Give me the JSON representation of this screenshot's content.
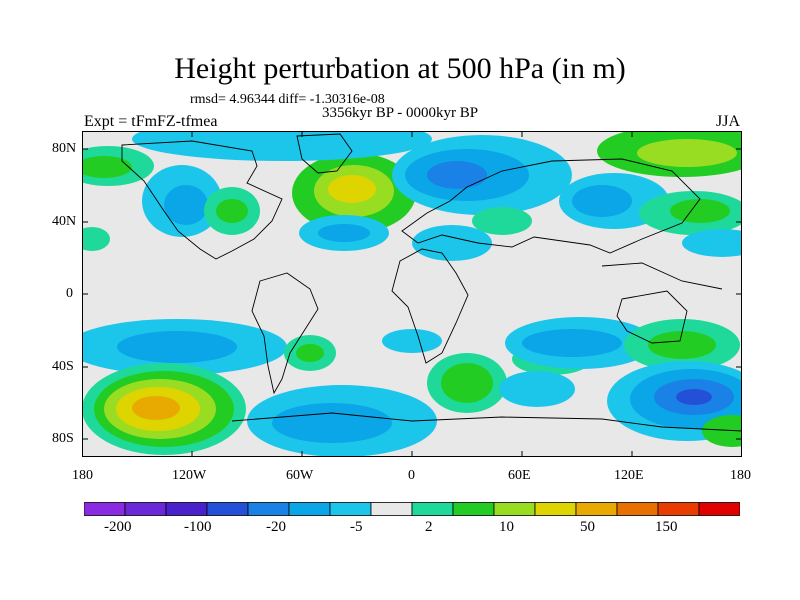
{
  "header": {
    "title": "Height perturbation at 500 hPa (in m)",
    "stats": "rmsd= 4.96344 diff= -1.30316e-08",
    "period": "3356kyr BP - 0000kyr BP",
    "experiment": "Expt = tFmFZ-tfmea",
    "season": "JJA"
  },
  "axes": {
    "lat_labels": [
      "80N",
      "40N",
      "0",
      "40S",
      "80S"
    ],
    "lon_labels": [
      "180",
      "120W",
      "60W",
      "0",
      "60E",
      "120E",
      "180"
    ]
  },
  "colorbar": {
    "labels": [
      "-200",
      "-100",
      "-20",
      "-5",
      "2",
      "10",
      "50",
      "150"
    ],
    "colors": [
      "#8a2be2",
      "#6a28d8",
      "#4a22cc",
      "#2450d8",
      "#1a82e6",
      "#0aa6e8",
      "#1cc6ea",
      "#e8e8e8",
      "#1fd99a",
      "#22cc22",
      "#99dd22",
      "#ddd400",
      "#e8aa00",
      "#e87000",
      "#e83c00",
      "#e00000"
    ]
  },
  "colors": {
    "background_field": "#e8e8e8",
    "coast": "#000000",
    "frame": "#000000"
  }
}
